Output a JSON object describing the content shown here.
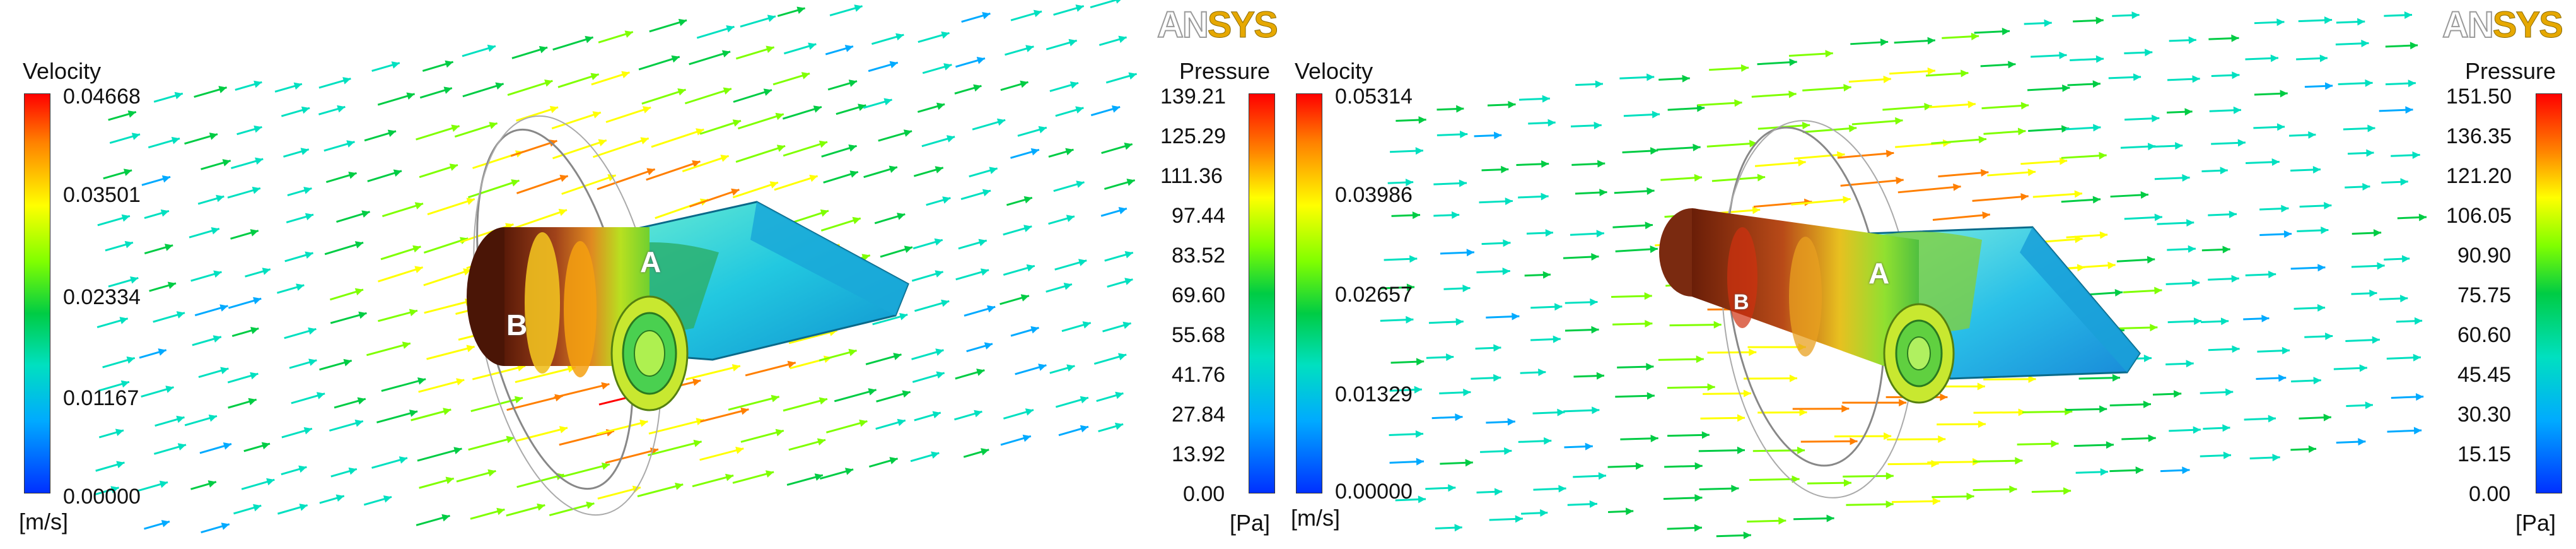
{
  "logo": {
    "brand_prefix": "AN",
    "brand_suffix": "SYS"
  },
  "panels": [
    {
      "velocity_legend": {
        "title": "Velocity",
        "unit": "[m/s]",
        "ticks": [
          "0.04668",
          "0.03501",
          "0.02334",
          "0.01167",
          "0.00000"
        ]
      },
      "pressure_legend": {
        "title": "Pressure",
        "unit": "[Pa]",
        "ticks": [
          "139.21",
          "125.29",
          "111.36",
          "97.44",
          "83.52",
          "69.60",
          "55.68",
          "41.76",
          "27.84",
          "13.92",
          "0.00"
        ]
      },
      "labels": {
        "a": "A",
        "b": "B"
      }
    },
    {
      "velocity_legend": {
        "title": "Velocity",
        "unit": "[m/s]",
        "ticks": [
          "0.05314",
          "0.03986",
          "0.02657",
          "0.01329",
          "0.00000"
        ]
      },
      "pressure_legend": {
        "title": "Pressure",
        "unit": "[Pa]",
        "ticks": [
          "151.50",
          "136.35",
          "121.20",
          "106.05",
          "90.90",
          "75.75",
          "60.60",
          "45.45",
          "30.30",
          "15.15",
          "0.00"
        ]
      },
      "labels": {
        "a": "A",
        "b": "B"
      }
    }
  ],
  "colors": {
    "colormap": [
      "#ff0000",
      "#ff7f00",
      "#ffff00",
      "#7fff00",
      "#00cc44",
      "#00e0c0",
      "#00aaff",
      "#0044ff"
    ],
    "structure_body": "#7a2a10",
    "fin": "#22c8e0"
  }
}
